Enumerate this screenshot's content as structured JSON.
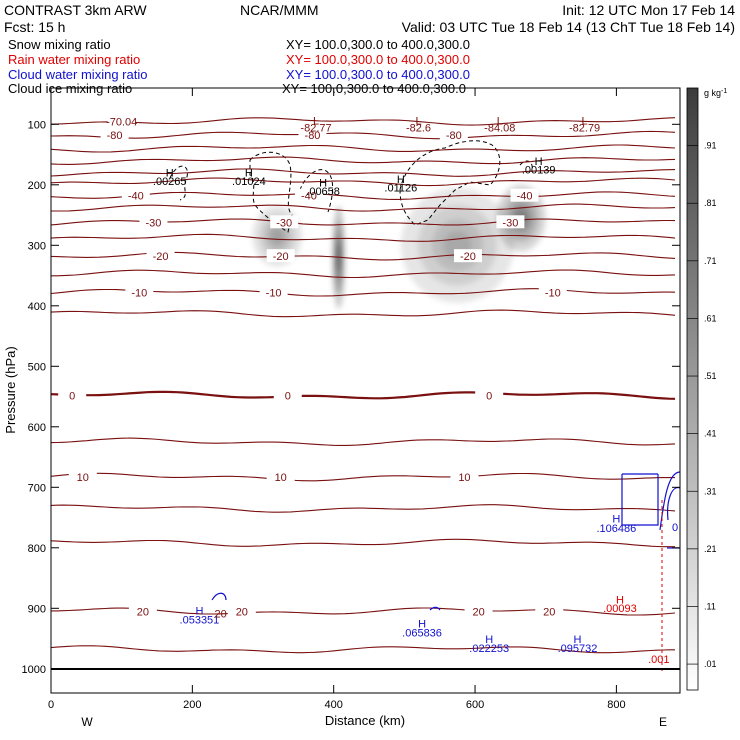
{
  "header": {
    "model": "CONTRAST  3km ARW",
    "org": "NCAR/MMM",
    "init": "Init: 12 UTC Mon 17 Feb 14",
    "fcst": "Fcst:   15 h",
    "valid": "Valid: 03 UTC Tue 18 Feb 14 (13 ChT Tue 18 Feb 14)"
  },
  "fields": [
    {
      "name": "Snow mixing ratio",
      "xy": "XY= 100.0,300.0 to 400.0,300.0",
      "color": "#000000"
    },
    {
      "name": "Rain water mixing ratio",
      "xy": "XY= 100.0,300.0 to 400.0,300.0",
      "color": "#e00000"
    },
    {
      "name": "Cloud water mixing ratio",
      "xy": "XY= 100.0,300.0 to 400.0,300.0",
      "color": "#1010d0"
    },
    {
      "name": "Cloud ice mixing ratio",
      "xy": "XY= 100.0,300.0 to 400.0,300.0",
      "color": "#000000"
    }
  ],
  "colors": {
    "temperature": "#7a1010",
    "rain": "#e00000",
    "cloud_water": "#1010d0",
    "cloud_ice": "#000000"
  },
  "chart_data": {
    "type": "heatmap",
    "xlabel": "Distance (km)",
    "ylabel": "Pressure (hPa)",
    "xlim": [
      0,
      890
    ],
    "ylim": [
      1040,
      40
    ],
    "x_ticks": [
      "0",
      "200",
      "400",
      "600",
      "800"
    ],
    "y_ticks": [
      "100",
      "200",
      "300",
      "400",
      "500",
      "600",
      "700",
      "800",
      "900",
      "1000"
    ],
    "x_endpoints": {
      "west": "W",
      "east": "E"
    },
    "colorbar": {
      "unit": "g kg",
      "unit_exp": "-1",
      "levels": [
        ".01",
        ".11",
        ".21",
        ".31",
        ".41",
        ".51",
        ".61",
        ".71",
        ".81",
        ".91"
      ]
    },
    "snow_cores": [
      {
        "x": 320,
        "p": 285,
        "rx": 35,
        "rp": 50,
        "peak": 0.5
      },
      {
        "x": 407,
        "p": 320,
        "rx": 9,
        "rp": 85,
        "peak": 1.0
      },
      {
        "x": 575,
        "p": 300,
        "rx": 80,
        "rp": 95,
        "peak": 0.45
      },
      {
        "x": 665,
        "p": 255,
        "rx": 35,
        "rp": 55,
        "peak": 0.75
      }
    ],
    "temperature_isotherms": [
      {
        "label": "-70.04",
        "p": 95,
        "bold": false,
        "label_x": [
          100
        ]
      },
      {
        "label": "-80",
        "p": 118,
        "bold": false,
        "label_x": [
          90,
          370,
          570
        ]
      },
      {
        "label": "",
        "p": 140,
        "bold": false,
        "label_x": []
      },
      {
        "label": "",
        "p": 160,
        "bold": false,
        "label_x": []
      },
      {
        "label": "",
        "p": 180,
        "bold": false,
        "label_x": []
      },
      {
        "label": "",
        "p": 195,
        "bold": false,
        "label_x": []
      },
      {
        "label": "-40",
        "p": 218,
        "bold": false,
        "label_x": [
          120,
          365,
          670
        ]
      },
      {
        "label": "",
        "p": 238,
        "bold": false,
        "label_x": []
      },
      {
        "label": "-30",
        "p": 262,
        "bold": false,
        "label_x": [
          145,
          330,
          650
        ]
      },
      {
        "label": "",
        "p": 288,
        "bold": false,
        "label_x": []
      },
      {
        "label": "-20",
        "p": 318,
        "bold": false,
        "label_x": [
          155,
          325,
          590
        ]
      },
      {
        "label": "",
        "p": 347,
        "bold": false,
        "label_x": []
      },
      {
        "label": "-10",
        "p": 378,
        "bold": false,
        "label_x": [
          125,
          315,
          710
        ]
      },
      {
        "label": "",
        "p": 413,
        "bold": false,
        "label_x": []
      },
      {
        "label": "0",
        "p": 548,
        "bold": true,
        "label_x": [
          30,
          335,
          620
        ]
      },
      {
        "label": "",
        "p": 625,
        "bold": false,
        "label_x": []
      },
      {
        "label": "10",
        "p": 683,
        "bold": false,
        "label_x": [
          45,
          325,
          585
        ]
      },
      {
        "label": "",
        "p": 735,
        "bold": false,
        "label_x": []
      },
      {
        "label": "",
        "p": 792,
        "bold": false,
        "label_x": []
      },
      {
        "label": "20",
        "p": 905,
        "bold": false,
        "label_x": [
          130,
          270,
          605,
          705
        ]
      },
      {
        "label": "",
        "p": 968,
        "bold": false,
        "label_x": []
      }
    ],
    "extrema_labels": [
      {
        "text": "L",
        "x": 375,
        "p": 100,
        "color": "#7a1010"
      },
      {
        "text": "-82.77",
        "x": 375,
        "p": 112,
        "color": "#7a1010"
      },
      {
        "text": "L",
        "x": 520,
        "p": 100,
        "color": "#7a1010"
      },
      {
        "text": "-82.6",
        "x": 520,
        "p": 112,
        "color": "#7a1010"
      },
      {
        "text": "L",
        "x": 635,
        "p": 100,
        "color": "#7a1010"
      },
      {
        "text": "-84.08",
        "x": 635,
        "p": 112,
        "color": "#7a1010"
      },
      {
        "text": "L",
        "x": 755,
        "p": 100,
        "color": "#7a1010"
      },
      {
        "text": "-82.79",
        "x": 755,
        "p": 112,
        "color": "#7a1010"
      },
      {
        "text": "H",
        "x": 168,
        "p": 186,
        "color": "#000000"
      },
      {
        "text": ".00265",
        "x": 168,
        "p": 200,
        "color": "#000000"
      },
      {
        "text": "H",
        "x": 280,
        "p": 186,
        "color": "#000000"
      },
      {
        "text": ".01024",
        "x": 280,
        "p": 200,
        "color": "#000000"
      },
      {
        "text": "H",
        "x": 385,
        "p": 203,
        "color": "#000000"
      },
      {
        "text": ".00658",
        "x": 385,
        "p": 217,
        "color": "#000000"
      },
      {
        "text": "H",
        "x": 495,
        "p": 197,
        "color": "#000000"
      },
      {
        "text": ".01126",
        "x": 495,
        "p": 211,
        "color": "#000000"
      },
      {
        "text": "H",
        "x": 690,
        "p": 167,
        "color": "#000000"
      },
      {
        "text": ".00139",
        "x": 690,
        "p": 181,
        "color": "#000000"
      },
      {
        "text": "H",
        "x": 800,
        "p": 758,
        "color": "#1010d0"
      },
      {
        "text": ".106486",
        "x": 800,
        "p": 774,
        "color": "#1010d0"
      },
      {
        "text": "H",
        "x": 805,
        "p": 892,
        "color": "#e00000"
      },
      {
        "text": ".00093",
        "x": 805,
        "p": 906,
        "color": "#e00000"
      },
      {
        "text": "H",
        "x": 210,
        "p": 910,
        "color": "#1010d0"
      },
      {
        "text": ".053351",
        "x": 210,
        "p": 925,
        "color": "#1010d0"
      },
      {
        "text": "H",
        "x": 525,
        "p": 932,
        "color": "#1010d0"
      },
      {
        "text": ".065836",
        "x": 525,
        "p": 947,
        "color": "#1010d0"
      },
      {
        "text": "H",
        "x": 620,
        "p": 957,
        "color": "#1010d0"
      },
      {
        "text": ".022253",
        "x": 620,
        "p": 972,
        "color": "#1010d0"
      },
      {
        "text": "H",
        "x": 745,
        "p": 957,
        "color": "#1010d0"
      },
      {
        "text": ".095732",
        "x": 745,
        "p": 972,
        "color": "#1010d0"
      },
      {
        "text": ".001",
        "x": 860,
        "p": 990,
        "color": "#e00000"
      },
      {
        "text": "0",
        "x": 883,
        "p": 772,
        "color": "#1010d0"
      },
      {
        "text": "20",
        "x": 240,
        "p": 915,
        "color": "#7a1010"
      }
    ]
  }
}
